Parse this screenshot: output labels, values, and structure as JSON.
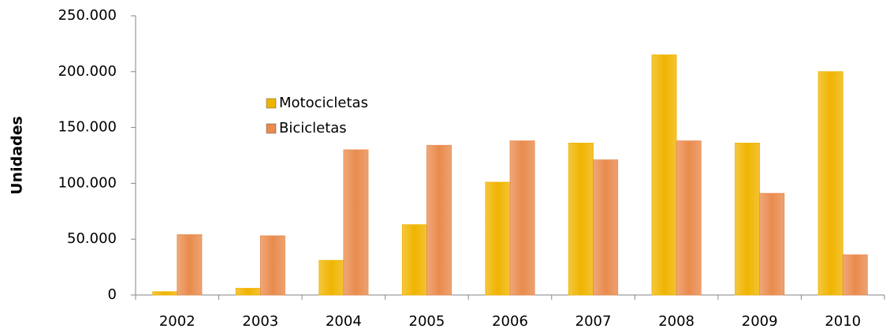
{
  "chart_data": {
    "type": "bar",
    "y_label": "Unidades",
    "categories": [
      "2002",
      "2003",
      "2004",
      "2005",
      "2006",
      "2007",
      "2008",
      "2009",
      "2010"
    ],
    "series": [
      {
        "name": "Motocicletas",
        "color": "#f0b400",
        "values": [
          3000,
          6000,
          31000,
          63000,
          101000,
          136000,
          215000,
          136000,
          200000
        ]
      },
      {
        "name": "Bicicletas",
        "color": "#e98b4d",
        "values": [
          54000,
          53000,
          130000,
          134000,
          138000,
          121000,
          138000,
          91000,
          36000
        ]
      }
    ],
    "ylim": [
      0,
      250000
    ],
    "yticks": [
      0,
      {
        "value": 50000,
        "label": "50.000"
      },
      {
        "value": 100000,
        "label": "100.000"
      },
      {
        "value": 150000,
        "label": "150.000"
      },
      {
        "value": 200000,
        "label": "200.000"
      },
      {
        "value": 250000,
        "label": "250.000"
      }
    ],
    "grid": false,
    "legend": "upper-left"
  }
}
